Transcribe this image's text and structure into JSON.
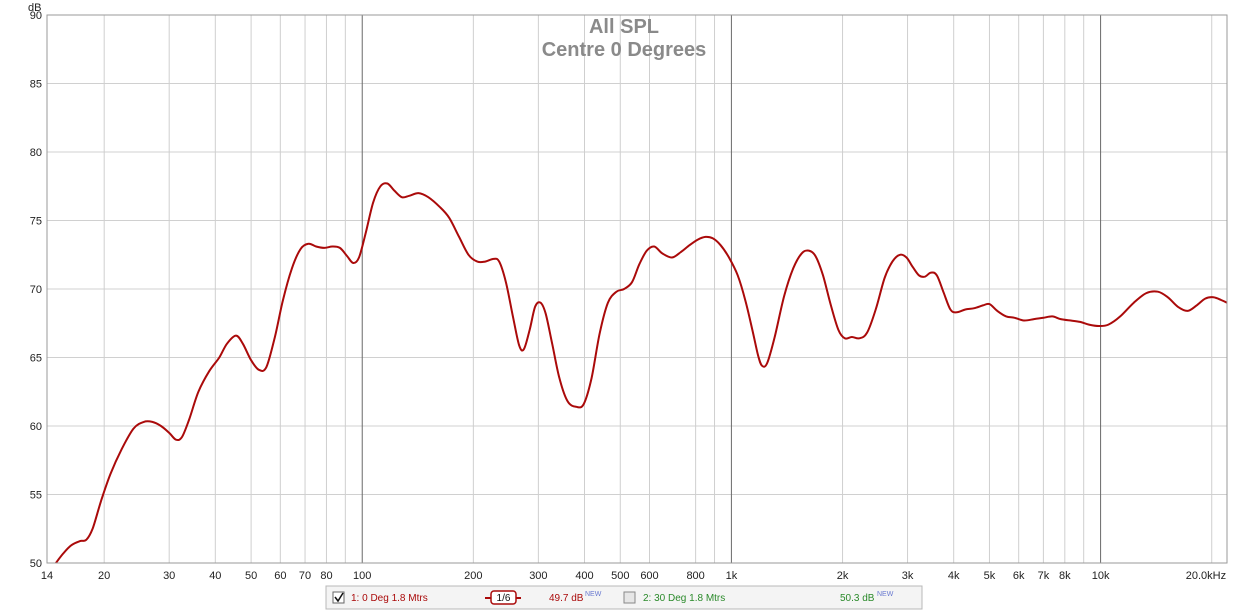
{
  "chart_data": {
    "type": "line",
    "title": "All SPL",
    "subtitle": "Centre 0 Degrees",
    "ylabel": "dB",
    "x_scale": "log",
    "xlim": [
      14,
      22000
    ],
    "ylim": [
      50,
      90
    ],
    "grid": true,
    "y_ticks": [
      50,
      55,
      60,
      65,
      70,
      75,
      80,
      85,
      90
    ],
    "x_ticks": [
      {
        "value": 14,
        "label": "14"
      },
      {
        "value": 20,
        "label": "20"
      },
      {
        "value": 30,
        "label": "30"
      },
      {
        "value": 40,
        "label": "40"
      },
      {
        "value": 50,
        "label": "50"
      },
      {
        "value": 60,
        "label": "60"
      },
      {
        "value": 70,
        "label": "70"
      },
      {
        "value": 80,
        "label": "80"
      },
      {
        "value": 100,
        "label": "100"
      },
      {
        "value": 200,
        "label": "200"
      },
      {
        "value": 300,
        "label": "300"
      },
      {
        "value": 400,
        "label": "400"
      },
      {
        "value": 500,
        "label": "500"
      },
      {
        "value": 600,
        "label": "600"
      },
      {
        "value": 800,
        "label": "800"
      },
      {
        "value": 1000,
        "label": "1k"
      },
      {
        "value": 2000,
        "label": "2k"
      },
      {
        "value": 3000,
        "label": "3k"
      },
      {
        "value": 4000,
        "label": "4k"
      },
      {
        "value": 5000,
        "label": "5k"
      },
      {
        "value": 6000,
        "label": "6k"
      },
      {
        "value": 7000,
        "label": "7k"
      },
      {
        "value": 8000,
        "label": "8k"
      },
      {
        "value": 10000,
        "label": "10k"
      },
      {
        "value": 20000,
        "label": "20.0kHz"
      }
    ],
    "minor_grid": [
      90,
      900,
      9000
    ],
    "major_grid": [
      100,
      1000,
      10000
    ],
    "series": [
      {
        "name": "1: 0 Deg 1.8 Mtrs",
        "color": "#aa0a0a",
        "points": [
          [
            14.8,
            50.0
          ],
          [
            15.5,
            50.7
          ],
          [
            16.3,
            51.3
          ],
          [
            17.2,
            51.6
          ],
          [
            17.9,
            51.7
          ],
          [
            18.6,
            52.5
          ],
          [
            19.6,
            54.5
          ],
          [
            20.8,
            56.5
          ],
          [
            22.3,
            58.3
          ],
          [
            24.0,
            59.8
          ],
          [
            25.6,
            60.3
          ],
          [
            27.0,
            60.3
          ],
          [
            28.5,
            60.0
          ],
          [
            30.0,
            59.5
          ],
          [
            31.3,
            59.0
          ],
          [
            32.5,
            59.2
          ],
          [
            34.0,
            60.5
          ],
          [
            36.0,
            62.5
          ],
          [
            38.5,
            64.0
          ],
          [
            41.0,
            65.0
          ],
          [
            43.0,
            66.0
          ],
          [
            45.5,
            66.6
          ],
          [
            47.5,
            66.0
          ],
          [
            50.0,
            64.8
          ],
          [
            52.5,
            64.1
          ],
          [
            55.0,
            64.3
          ],
          [
            58.0,
            66.5
          ],
          [
            61.0,
            69.2
          ],
          [
            64.5,
            71.5
          ],
          [
            68.0,
            72.9
          ],
          [
            71.5,
            73.3
          ],
          [
            75.0,
            73.1
          ],
          [
            79.0,
            73.0
          ],
          [
            83.0,
            73.1
          ],
          [
            87.0,
            73.0
          ],
          [
            91.0,
            72.4
          ],
          [
            94.5,
            71.9
          ],
          [
            98.0,
            72.3
          ],
          [
            102.0,
            74.0
          ],
          [
            107.0,
            76.3
          ],
          [
            112.0,
            77.5
          ],
          [
            117.0,
            77.7
          ],
          [
            122.0,
            77.2
          ],
          [
            128.0,
            76.7
          ],
          [
            134.0,
            76.8
          ],
          [
            142.0,
            77.0
          ],
          [
            151.0,
            76.7
          ],
          [
            162.0,
            76.0
          ],
          [
            172.0,
            75.2
          ],
          [
            183.0,
            73.8
          ],
          [
            194.0,
            72.5
          ],
          [
            205.0,
            72.0
          ],
          [
            215.0,
            72.0
          ],
          [
            227.0,
            72.2
          ],
          [
            235.0,
            72.0
          ],
          [
            245.0,
            70.5
          ],
          [
            256.0,
            68.0
          ],
          [
            266.0,
            65.9
          ],
          [
            274.0,
            65.6
          ],
          [
            284.0,
            67.0
          ],
          [
            294.0,
            68.7
          ],
          [
            304.0,
            69.0
          ],
          [
            314.0,
            68.2
          ],
          [
            327.0,
            66.0
          ],
          [
            342.0,
            63.5
          ],
          [
            360.0,
            61.8
          ],
          [
            380.0,
            61.4
          ],
          [
            398.0,
            61.6
          ],
          [
            418.0,
            63.5
          ],
          [
            440.0,
            66.8
          ],
          [
            463.0,
            69.0
          ],
          [
            488.0,
            69.8
          ],
          [
            512.0,
            70.0
          ],
          [
            538.0,
            70.5
          ],
          [
            563.0,
            71.8
          ],
          [
            590.0,
            72.8
          ],
          [
            618.0,
            73.1
          ],
          [
            650.0,
            72.6
          ],
          [
            690.0,
            72.3
          ],
          [
            730.0,
            72.7
          ],
          [
            770.0,
            73.2
          ],
          [
            810.0,
            73.6
          ],
          [
            850.0,
            73.8
          ],
          [
            890.0,
            73.7
          ],
          [
            935.0,
            73.2
          ],
          [
            985.0,
            72.3
          ],
          [
            1040.0,
            71.0
          ],
          [
            1090.0,
            69.2
          ],
          [
            1140.0,
            67.0
          ],
          [
            1180.0,
            65.2
          ],
          [
            1210.0,
            64.4
          ],
          [
            1250.0,
            64.6
          ],
          [
            1310.0,
            66.5
          ],
          [
            1390.0,
            69.5
          ],
          [
            1470.0,
            71.5
          ],
          [
            1550.0,
            72.6
          ],
          [
            1620.0,
            72.8
          ],
          [
            1690.0,
            72.4
          ],
          [
            1770.0,
            71.0
          ],
          [
            1860.0,
            68.8
          ],
          [
            1950.0,
            67.0
          ],
          [
            2030.0,
            66.4
          ],
          [
            2120.0,
            66.5
          ],
          [
            2220.0,
            66.4
          ],
          [
            2330.0,
            66.8
          ],
          [
            2460.0,
            68.5
          ],
          [
            2600.0,
            70.8
          ],
          [
            2730.0,
            72.0
          ],
          [
            2860.0,
            72.5
          ],
          [
            2980.0,
            72.3
          ],
          [
            3100.0,
            71.6
          ],
          [
            3220.0,
            71.0
          ],
          [
            3340.0,
            70.9
          ],
          [
            3470.0,
            71.2
          ],
          [
            3600.0,
            71.0
          ],
          [
            3750.0,
            69.8
          ],
          [
            3920.0,
            68.5
          ],
          [
            4080.0,
            68.3
          ],
          [
            4300.0,
            68.5
          ],
          [
            4550.0,
            68.6
          ],
          [
            4800.0,
            68.8
          ],
          [
            5000.0,
            68.9
          ],
          [
            5250.0,
            68.4
          ],
          [
            5550.0,
            68.0
          ],
          [
            5850.0,
            67.9
          ],
          [
            6200.0,
            67.7
          ],
          [
            6600.0,
            67.8
          ],
          [
            7000.0,
            67.9
          ],
          [
            7400.0,
            68.0
          ],
          [
            7800.0,
            67.8
          ],
          [
            8300.0,
            67.7
          ],
          [
            8800.0,
            67.6
          ],
          [
            9300.0,
            67.4
          ],
          [
            9900.0,
            67.3
          ],
          [
            10500.0,
            67.4
          ],
          [
            11300.0,
            68.0
          ],
          [
            12300.0,
            69.0
          ],
          [
            13300.0,
            69.7
          ],
          [
            14300.0,
            69.8
          ],
          [
            15200.0,
            69.4
          ],
          [
            16200.0,
            68.7
          ],
          [
            17200.0,
            68.4
          ],
          [
            18200.0,
            68.8
          ],
          [
            19200.0,
            69.3
          ],
          [
            20200.0,
            69.4
          ],
          [
            21200.0,
            69.2
          ],
          [
            22000.0,
            69.0
          ]
        ]
      }
    ]
  },
  "legend": {
    "items": [
      {
        "checked": true,
        "label": "1: 0 Deg 1.8 Mtrs",
        "color": "#aa0a0a",
        "smoothing": "1/6",
        "level": "49.7 dB",
        "level_tag": "NEW"
      },
      {
        "checked": false,
        "label": "2: 30 Deg 1.8 Mtrs",
        "color": "#2a8a2a",
        "level": "50.3 dB",
        "level_tag": "NEW"
      }
    ]
  }
}
